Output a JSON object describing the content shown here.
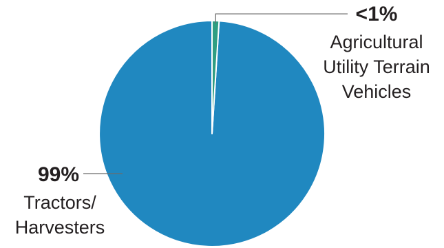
{
  "chart_data": {
    "type": "pie",
    "slices": [
      {
        "value": 99,
        "value_label": "99%",
        "label_lines": [
          "Tractors/",
          "Harvesters"
        ],
        "color": "#2088c0"
      },
      {
        "value": 1,
        "value_label": "<1%",
        "label_lines": [
          "Agricultural",
          "Utility Terrain",
          "Vehicles"
        ],
        "color": "#2f9e82"
      }
    ],
    "start_angle": "12 o'clock",
    "direction": "counterclockwise",
    "separator_color": "#ffffff",
    "legend": "none"
  }
}
